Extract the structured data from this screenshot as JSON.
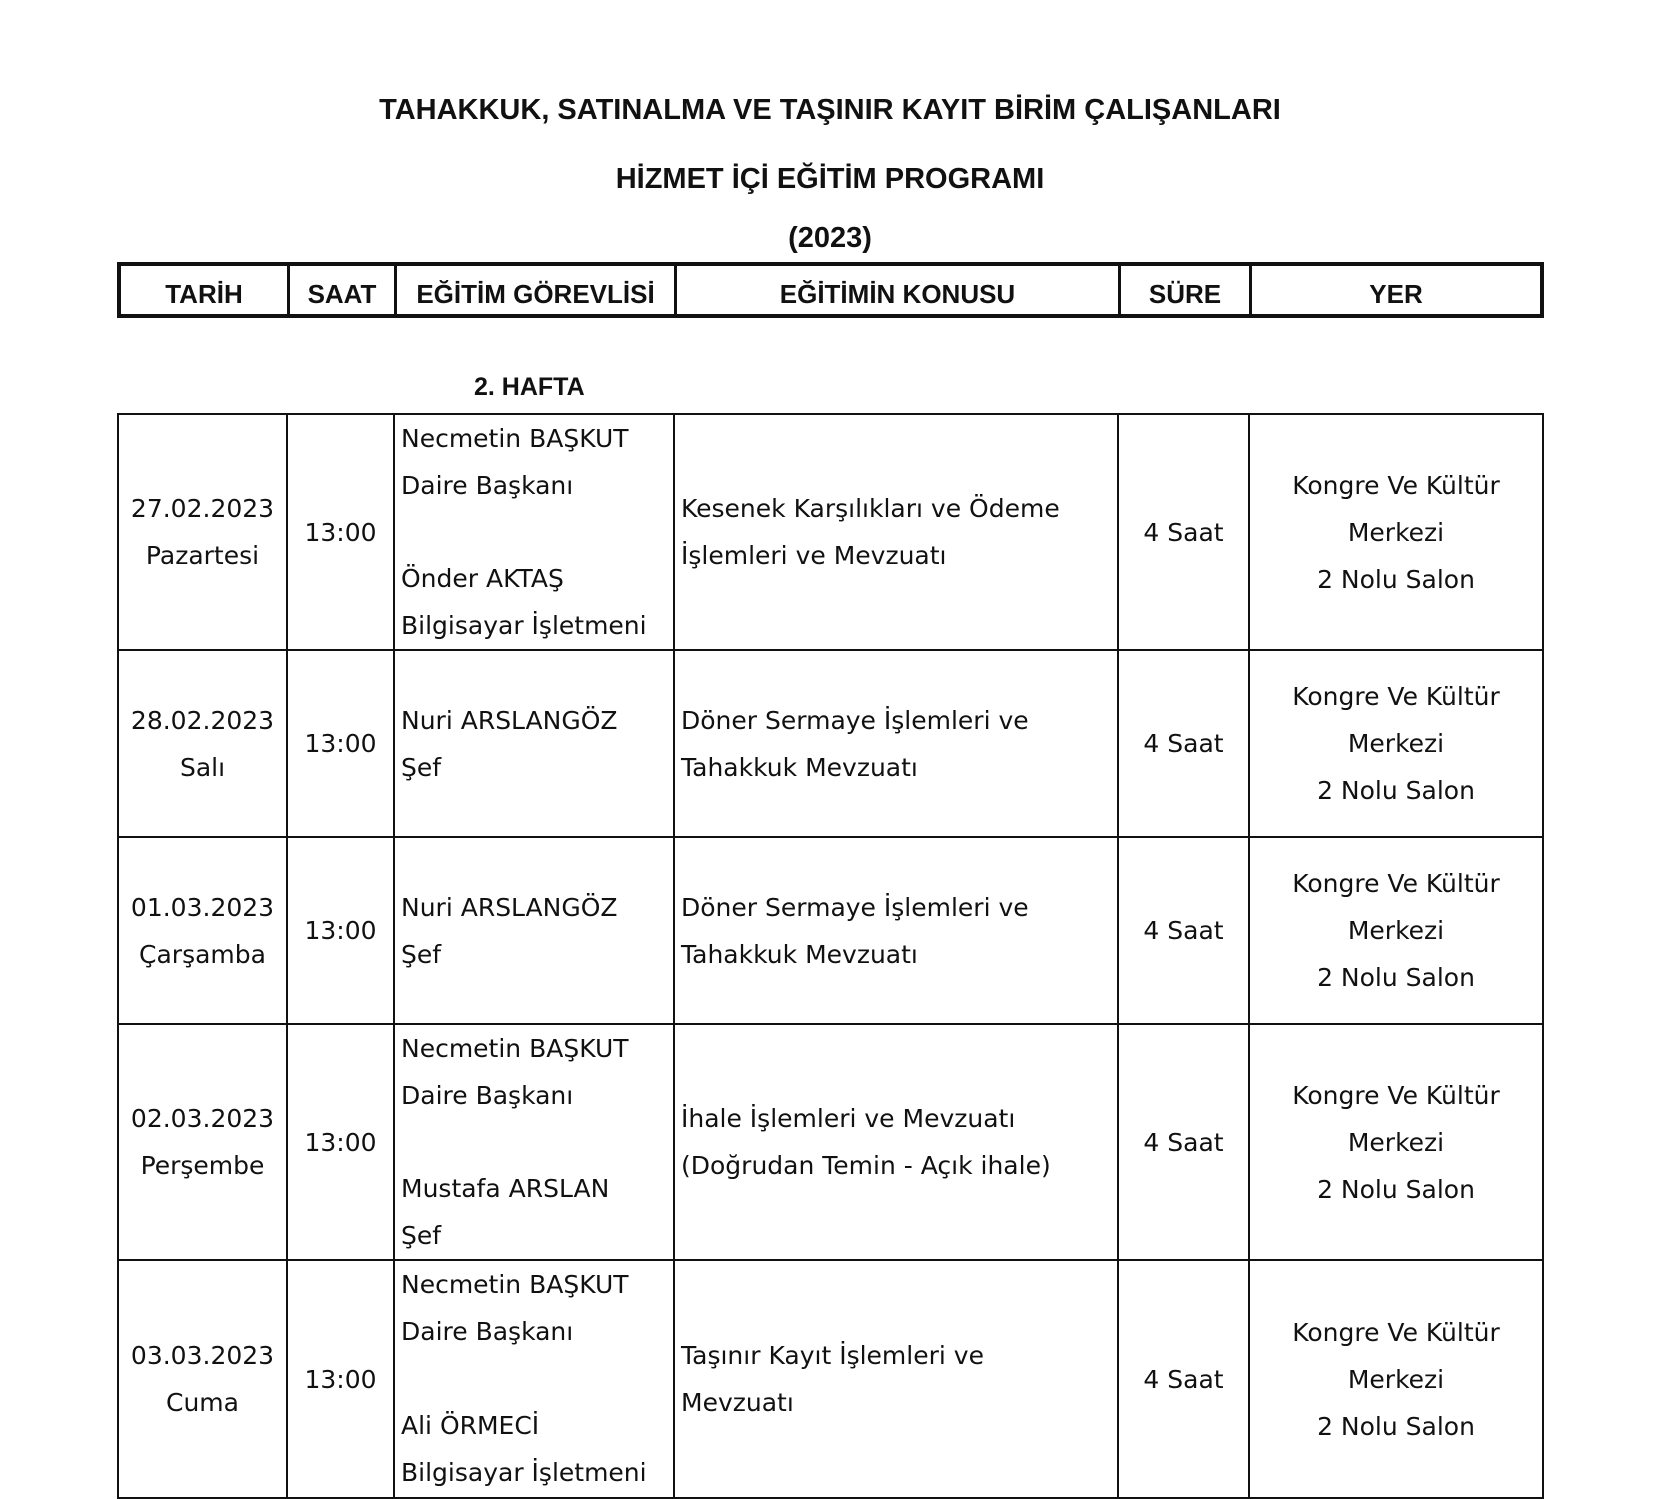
{
  "title_line1": "TAHAKKUK, SATINALMA VE TAŞINIR KAYIT BİRİM ÇALIŞANLARI",
  "title_line2": "HİZMET İÇİ EĞİTİM PROGRAMI",
  "year": "(2023)",
  "headers": [
    "TARİH",
    "SAAT",
    "EĞİTİM GÖREVLİSİ",
    "EĞİTİMİN KONUSU",
    "SÜRE",
    "YER"
  ],
  "week_label": "2. HAFTA",
  "rows": [
    {
      "date": "27.02.2023",
      "day": "Pazartesi",
      "time": "13:00",
      "trainers": [
        {
          "name": "Necmetin BAŞKUT",
          "title": "Daire Başkanı"
        },
        {
          "name": "Önder AKTAŞ",
          "title": "Bilgisayar İşletmeni"
        }
      ],
      "topic": [
        "Kesenek Karşılıkları ve Ödeme",
        "İşlemleri ve Mevzuatı"
      ],
      "duration": "4 Saat",
      "place": [
        "Kongre Ve Kültür",
        "Merkezi",
        "2 Nolu Salon"
      ]
    },
    {
      "date": "28.02.2023",
      "day": "Salı",
      "time": "13:00",
      "trainers": [
        {
          "name": "Nuri ARSLANGÖZ",
          "title": "Şef"
        }
      ],
      "topic": [
        "Döner Sermaye İşlemleri ve",
        "Tahakkuk Mevzuatı"
      ],
      "duration": "4 Saat",
      "place": [
        "Kongre Ve Kültür",
        "Merkezi",
        "2 Nolu Salon"
      ]
    },
    {
      "date": "01.03.2023",
      "day": "Çarşamba",
      "time": "13:00",
      "trainers": [
        {
          "name": "Nuri ARSLANGÖZ",
          "title": "Şef"
        }
      ],
      "topic": [
        "Döner Sermaye İşlemleri ve",
        "Tahakkuk Mevzuatı"
      ],
      "duration": "4 Saat",
      "place": [
        "Kongre Ve Kültür",
        "Merkezi",
        "2 Nolu Salon"
      ]
    },
    {
      "date": "02.03.2023",
      "day": "Perşembe",
      "time": "13:00",
      "trainers": [
        {
          "name": "Necmetin BAŞKUT",
          "title": "Daire Başkanı"
        },
        {
          "name": "Mustafa ARSLAN",
          "title": "Şef"
        }
      ],
      "topic": [
        "İhale İşlemleri ve Mevzuatı",
        "(Doğrudan Temin - Açık ihale)"
      ],
      "duration": "4 Saat",
      "place": [
        "Kongre Ve Kültür",
        "Merkezi",
        "2 Nolu Salon"
      ]
    },
    {
      "date": "03.03.2023",
      "day": "Cuma",
      "time": "13:00",
      "trainers": [
        {
          "name": "Necmetin BAŞKUT",
          "title": "Daire Başkanı"
        },
        {
          "name": "Ali ÖRMECİ",
          "title": "Bilgisayar İşletmeni"
        }
      ],
      "topic": [
        "Taşınır Kayıt İşlemleri ve",
        "Mevzuatı"
      ],
      "duration": "4 Saat",
      "place": [
        "Kongre Ve Kültür",
        "Merkezi",
        "2 Nolu Salon"
      ]
    }
  ]
}
